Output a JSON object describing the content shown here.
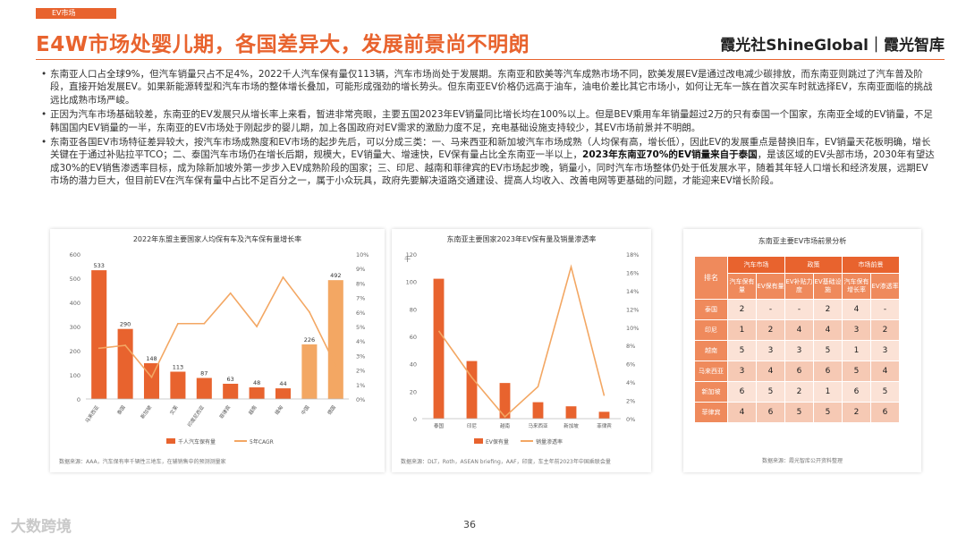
{
  "header": {
    "tag": "EV市场",
    "title": "E4W市场处婴儿期，各国差异大，发展前景尚不明朗",
    "brand": "霞光社ShineGlobal｜霞光智库"
  },
  "bullets": [
    {
      "text": "东南亚人口占全球9%，但汽车销量只占不足4%，2022千人汽车保有量仅113辆，汽车市场尚处于发展期。东南亚和欧美等汽车成熟市场不同，欧美发展EV是通过改电减少碳排放，而东南亚则跳过了汽车普及阶段，直接开始发展EV。如果新能源转型和汽车市场的整体增长叠加，可能形成强劲的增长势头。但东南亚EV价格仍远高于油车，油电价差比其它市场小，如何让无车一族在首次买车时就选择EV，东南亚面临的挑战远比成熟市场严峻。"
    },
    {
      "text": "正因为汽车市场基础较差，东南亚的EV发展只从增长率上来看，暂进非常亮眼，主要五国2023年EV销量同比增长均在100%以上。但是BEV乘用车年销量超过2万的只有泰国一个国家，东南亚全域的EV销量，不足韩国国内EV销量的一半，东南亚的EV市场处于刚起步的婴儿期，加上各国政府对EV需求的激励力度不足，充电基础设施支持较少，其EV市场前景并不明朗。"
    },
    {
      "pre": "东南亚各国EV市场特征差异较大，按汽车市场成熟度和EV市场的起步先后，可以分成三类：一、马来西亚和新加坡汽车市场成熟（人均保有高，增长低），因此EV的发展重点是替换旧车，EV销量天花板明确，增长关键在于通过补贴拉平TCO；二、泰国汽车市场仍在增长后期，规模大，EV销量大、增速快，EV保有量占比全东南亚一半以上，",
      "bold": "2023年东南亚70%的EV销量来自于泰国",
      "post": "，是该区域的EV头部市场，2030年有望达成30%的EV销售渗透率目标，成为除新加坡外第一步步入EV成熟阶段的国家；三、印尼、越南和菲律宾的EV市场起步晚，销量小，同时汽车市场整体仍处于低发展水平，随着其年轻人口增长和经济发展，远期EV市场的潜力巨大，但目前EV在汽车保有量中占比不足百分之一，属于小众玩具，政府先要解决道路交通建设、提高人均收入、改善电网等更基础的问题，才能迎来EV增长阶段。"
    }
  ],
  "chart1": {
    "title": "2022年东盟主要国家人均保有车及汽车保有量增长率",
    "source": "数据来源：AAA，汽车保有率千辆性三地车，在辅销售中的预测测量家",
    "legend_bar": "千人汽车保有量",
    "legend_line": "5年CAGR",
    "yleft_ticks": [
      "0",
      "100",
      "200",
      "300",
      "400",
      "500",
      "600"
    ],
    "yright_ticks": [
      "0%",
      "1%",
      "2%",
      "3%",
      "4%",
      "5%",
      "6%",
      "7%",
      "8%",
      "9%",
      "10%"
    ]
  },
  "chart2": {
    "title": "东南亚主要国家2023年EV保有量及销量渗透率",
    "unit": "千",
    "source": "数据来源：DLT，Roth，ASEAN briefing，AAF，印度，车主年前2023年中国乘联会量",
    "legend_bar": "EV保有量",
    "legend_line": "销量渗透率",
    "yleft_ticks": [
      "0",
      "20",
      "40",
      "60",
      "80",
      "100",
      "120"
    ],
    "yright_ticks": [
      "0%",
      "2%",
      "4%",
      "6%",
      "8%",
      "10%",
      "12%",
      "14%",
      "16%",
      "18%"
    ]
  },
  "chart3": {
    "title": "东南亚主要EV市场前景分析",
    "source": "数据来源：霞光智库公开资料整理",
    "group_headers": [
      "汽车市场",
      "政策",
      "市场前景"
    ],
    "sub_headers": [
      "汽车保有量",
      "EV保有量",
      "EV补贴力度",
      "EV基础设施",
      "汽车保有增长率",
      "EV渗透率"
    ],
    "row_header": "排名",
    "rows": [
      {
        "country": "泰国",
        "values": [
          "2",
          "-",
          "-",
          "2",
          "4",
          "-"
        ]
      },
      {
        "country": "印尼",
        "values": [
          "1",
          "2",
          "4",
          "4",
          "3",
          "2"
        ]
      },
      {
        "country": "越南",
        "values": [
          "5",
          "3",
          "3",
          "5",
          "1",
          "3"
        ]
      },
      {
        "country": "马来西亚",
        "values": [
          "3",
          "4",
          "6",
          "6",
          "5",
          "4"
        ]
      },
      {
        "country": "新加坡",
        "values": [
          "6",
          "5",
          "2",
          "1",
          "6",
          "5"
        ]
      },
      {
        "country": "菲律宾",
        "values": [
          "4",
          "6",
          "5",
          "5",
          "2",
          "6"
        ]
      }
    ]
  },
  "chart_data": [
    {
      "type": "bar",
      "title": "2022年东盟主要国家人均保有车及汽车保有量增长率",
      "categories": [
        "马来西亚",
        "泰国",
        "新加坡",
        "文莱",
        "印度尼西亚",
        "菲律宾",
        "越南",
        "缅甸",
        "中国",
        "德国"
      ],
      "series": [
        {
          "name": "千人汽车保有量",
          "type": "bar",
          "axis": "left",
          "values": [
            533,
            290,
            148,
            113,
            87,
            63,
            48,
            44,
            226,
            492
          ]
        },
        {
          "name": "5年CAGR",
          "type": "line",
          "axis": "right",
          "values": [
            3.5,
            3.7,
            1.5,
            5.2,
            5.2,
            7.3,
            5.0,
            8.4,
            6.0,
            2.3
          ]
        }
      ],
      "ylim": [
        0,
        600
      ],
      "y2lim": [
        0,
        10
      ]
    },
    {
      "type": "bar",
      "title": "东南亚主要国家2023年EV保有量及销量渗透率",
      "categories": [
        "泰国",
        "印尼",
        "越南",
        "马来西亚",
        "新加坡",
        "菲律宾"
      ],
      "series": [
        {
          "name": "EV保有量",
          "type": "bar",
          "axis": "left",
          "values": [
            102,
            42,
            26,
            12,
            9,
            5
          ]
        },
        {
          "name": "销量渗透率",
          "type": "line",
          "axis": "right",
          "values": [
            9.6,
            4.5,
            0.2,
            3.5,
            16.6,
            2.5
          ]
        }
      ],
      "ylim": [
        0,
        120
      ],
      "y2lim": [
        0,
        18
      ]
    },
    {
      "type": "table",
      "title": "东南亚主要EV市场前景分析",
      "columns": [
        "汽车保有量",
        "EV保有量",
        "EV补贴力度",
        "EV基础设施",
        "汽车保有增长率",
        "EV渗透率"
      ],
      "rows": {
        "泰国": [
          "2",
          "-",
          "-",
          "2",
          "4",
          "-"
        ],
        "印尼": [
          "1",
          "2",
          "4",
          "4",
          "3",
          "2"
        ],
        "越南": [
          "5",
          "3",
          "3",
          "5",
          "1",
          "3"
        ],
        "马来西亚": [
          "3",
          "4",
          "6",
          "6",
          "5",
          "4"
        ],
        "新加坡": [
          "6",
          "5",
          "2",
          "1",
          "6",
          "5"
        ],
        "菲律宾": [
          "4",
          "6",
          "5",
          "5",
          "2",
          "6"
        ]
      }
    }
  ],
  "colors": {
    "accent": "#e8632e",
    "bar_main": "#e8632e",
    "bar_alt": "#f3a763",
    "line": "#f3a763"
  },
  "footer": {
    "page": "36",
    "watermark": "大数跨境"
  }
}
